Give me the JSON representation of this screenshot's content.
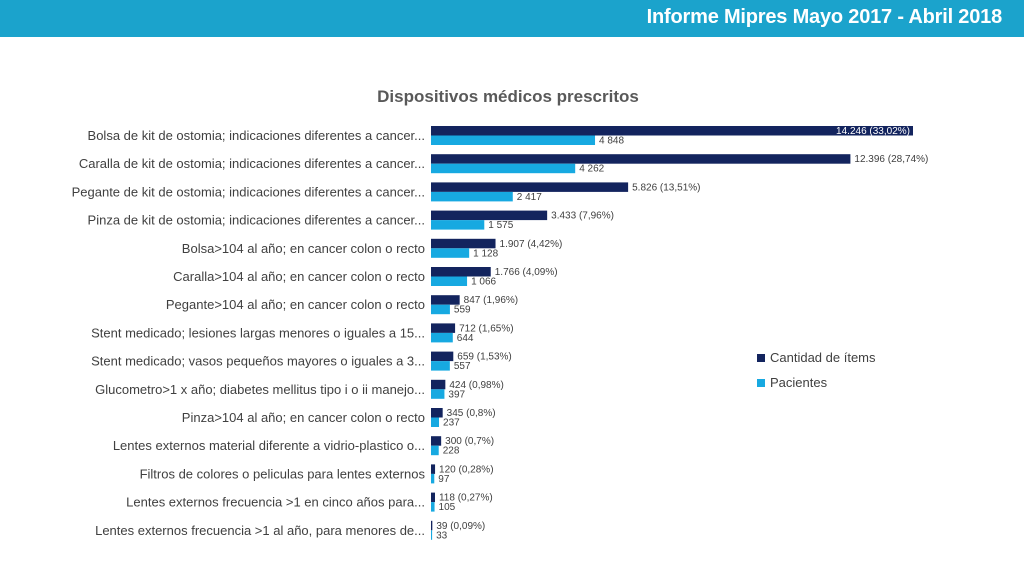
{
  "header": {
    "title": "Informe Mipres Mayo 2017 - Abril 2018"
  },
  "colors": {
    "header_bg": "#1ba3cc",
    "items": "#13245e",
    "patients": "#17a9e1"
  },
  "chart_data": {
    "type": "bar",
    "orientation": "horizontal",
    "title": "Dispositivos médicos prescritos",
    "categories": [
      "Bolsa de kit de ostomia; indicaciones diferentes a cancer...",
      "Caralla de kit de ostomia; indicaciones diferentes a cancer...",
      "Pegante de kit de ostomia; indicaciones diferentes a cancer...",
      "Pinza de kit de ostomia; indicaciones diferentes a cancer...",
      "Bolsa>104 al año; en cancer colon o recto",
      "Caralla>104 al año; en cancer colon o recto",
      "Pegante>104 al año; en cancer colon o recto",
      "Stent medicado; lesiones largas menores o iguales  a 15...",
      "Stent medicado; vasos pequeños mayores o iguales  a 3...",
      "Glucometro>1 x año; diabetes mellitus tipo i o ii manejo...",
      "Pinza>104 al año; en cancer colon o recto",
      "Lentes externos material diferente a vidrio-plastico o...",
      "Filtros de colores o peliculas para lentes externos",
      "Lentes externos frecuencia >1 en cinco años  para...",
      "Lentes externos frecuencia >1 al año, para menores de..."
    ],
    "series": [
      {
        "name": "Cantidad de ítems",
        "values": [
          14246,
          12396,
          5826,
          3433,
          1907,
          1766,
          847,
          712,
          659,
          424,
          345,
          300,
          120,
          118,
          39
        ],
        "labels": [
          "14.246 (33,02%)",
          "12.396 (28,74%)",
          "5.826 (13,51%)",
          "3.433 (7,96%)",
          "1.907 (4,42%)",
          "1.766 (4,09%)",
          "847 (1,96%)",
          "712 (1,65%)",
          "659 (1,53%)",
          "424 (0,98%)",
          "345 (0,8%)",
          "300 (0,7%)",
          "120 (0,28%)",
          "118 (0,27%)",
          "39 (0,09%)"
        ]
      },
      {
        "name": "Pacientes",
        "values": [
          4848,
          4262,
          2417,
          1575,
          1128,
          1066,
          559,
          644,
          557,
          397,
          237,
          228,
          97,
          105,
          33
        ],
        "labels": [
          "4 848",
          "4 262",
          "2 417",
          "1 575",
          "1 128",
          "1 066",
          "559",
          "644",
          "557",
          "397",
          "237",
          "228",
          "97",
          "105",
          "33"
        ]
      }
    ],
    "xlim": [
      0,
      14246
    ],
    "grid": false,
    "legend_position": "right"
  }
}
